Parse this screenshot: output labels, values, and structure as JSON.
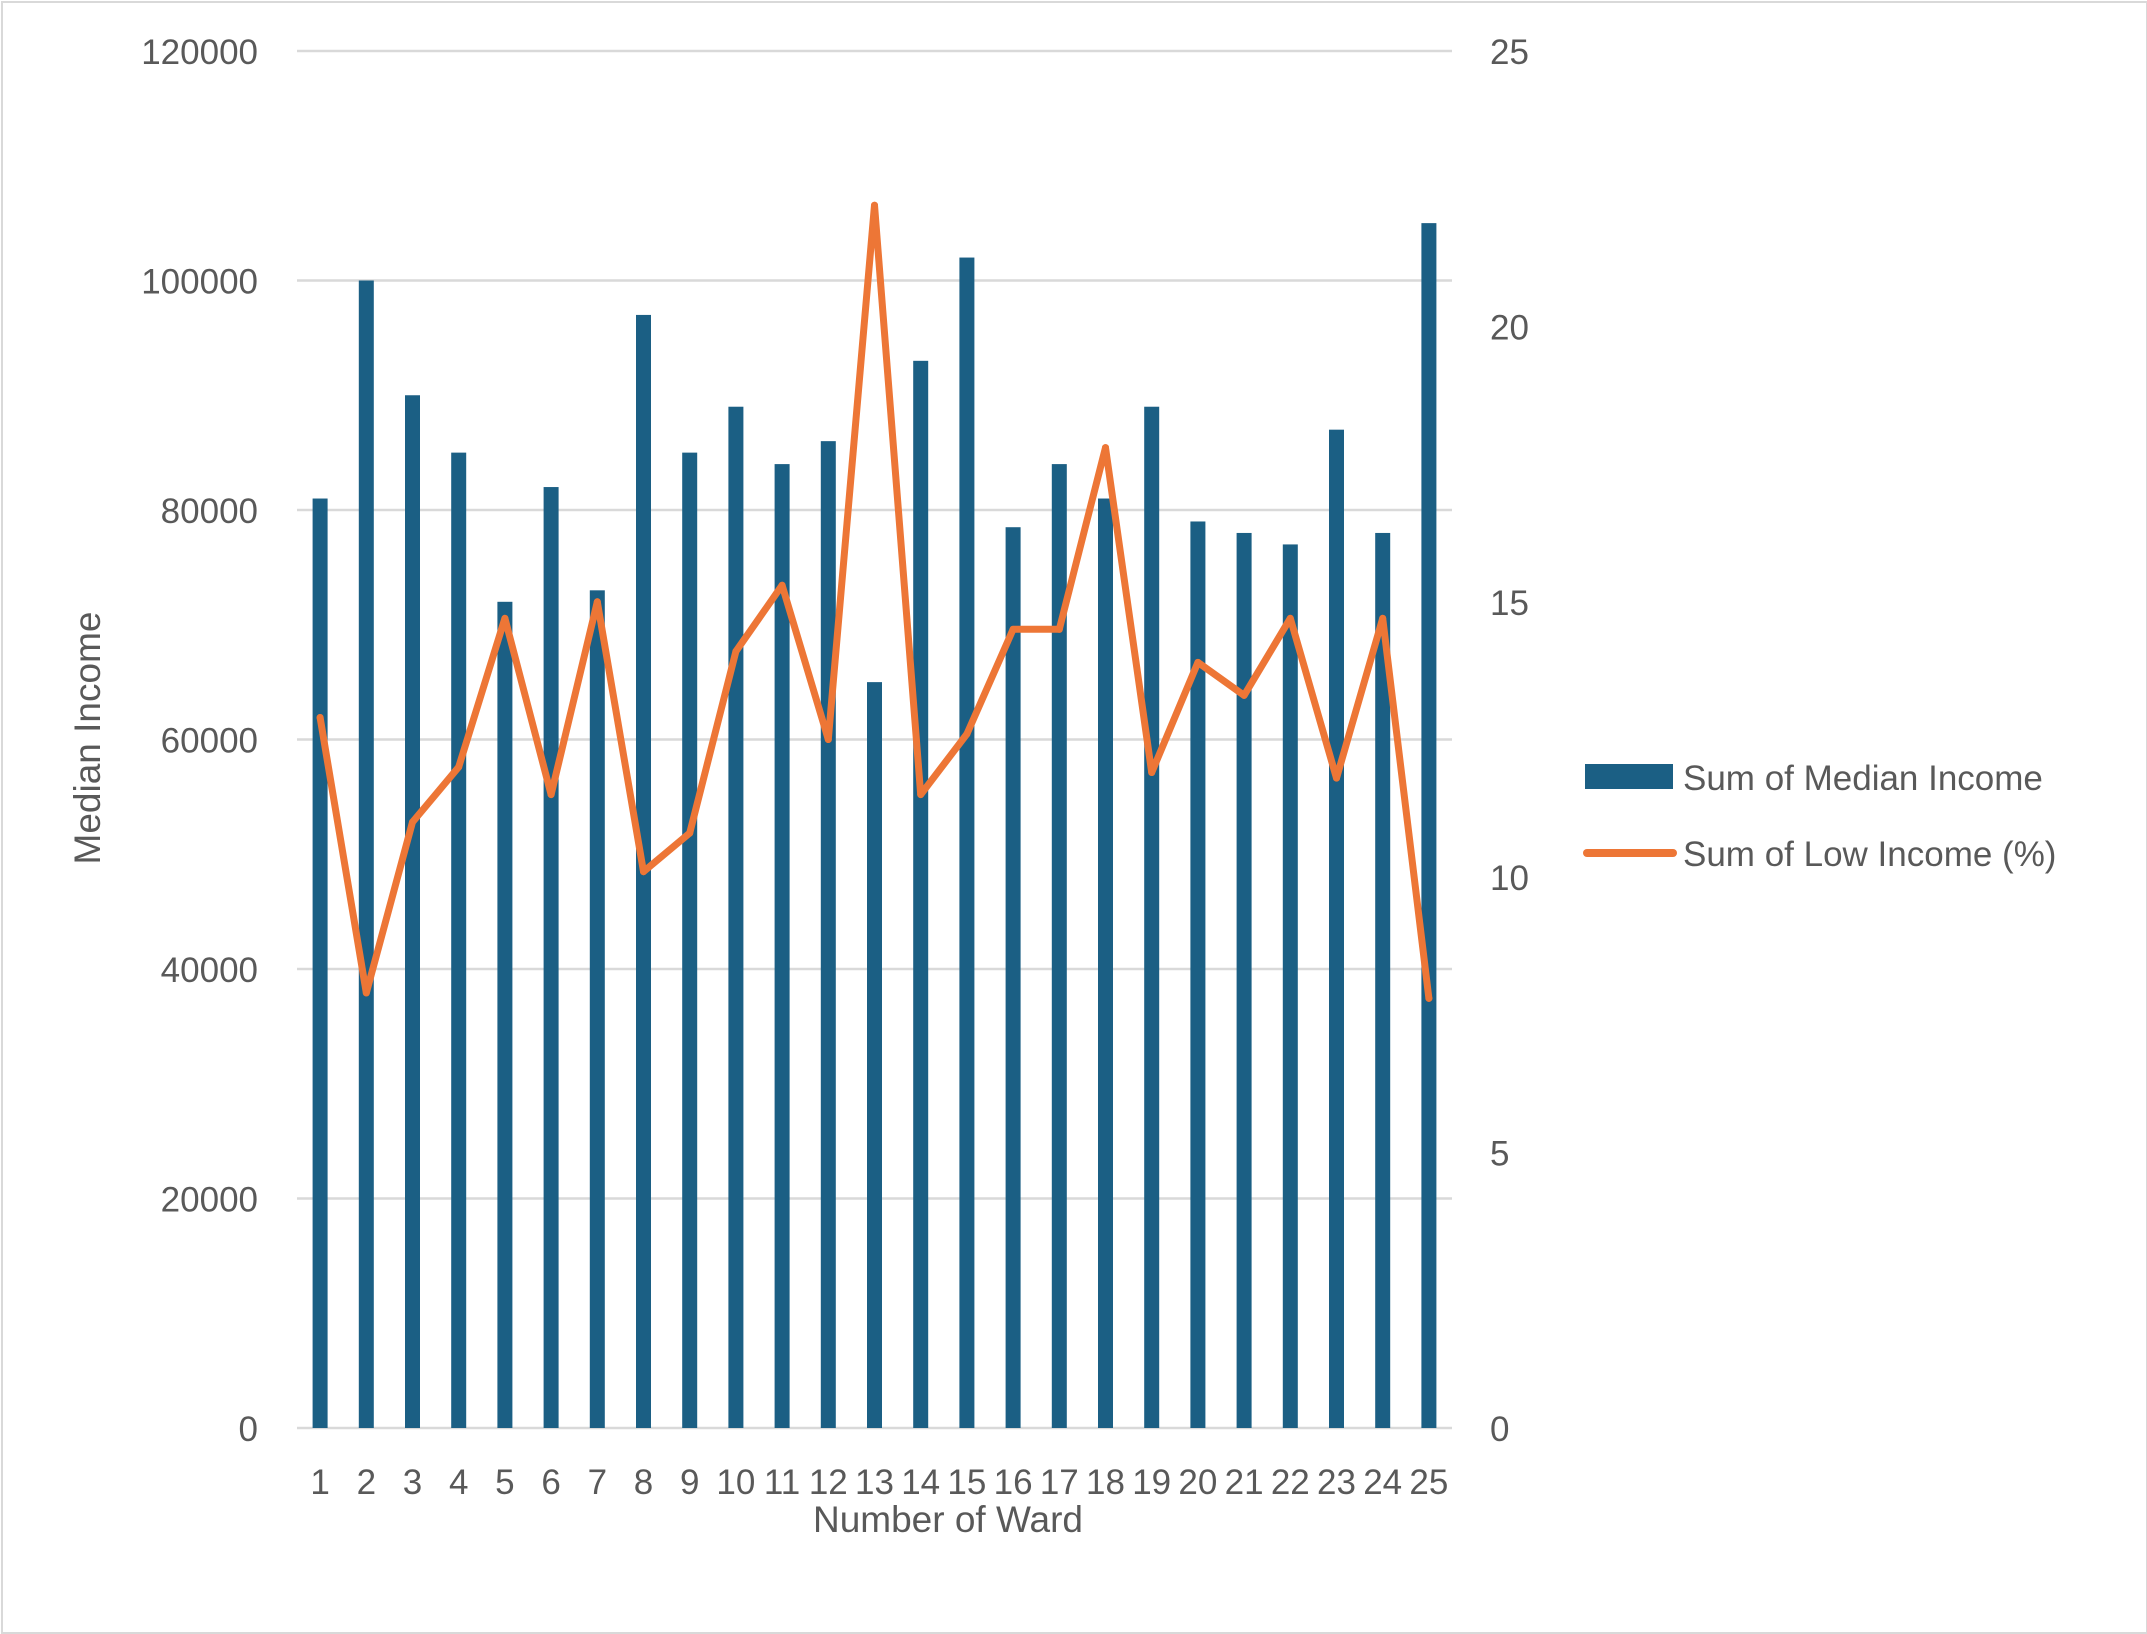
{
  "chart_data": {
    "type": "bar+line",
    "xlabel": "Number of Ward",
    "ylabel": "Median Income",
    "y2label": "",
    "categories": [
      "1",
      "2",
      "3",
      "4",
      "5",
      "6",
      "7",
      "8",
      "9",
      "10",
      "11",
      "12",
      "13",
      "14",
      "15",
      "16",
      "17",
      "18",
      "19",
      "20",
      "21",
      "22",
      "23",
      "24",
      "25"
    ],
    "ylim": [
      0,
      120000
    ],
    "yticks": [
      0,
      20000,
      40000,
      60000,
      80000,
      100000,
      120000
    ],
    "y2lim": [
      0,
      25
    ],
    "y2ticks": [
      0,
      5,
      10,
      15,
      20,
      25
    ],
    "grid": true,
    "legend_position": "right",
    "series": [
      {
        "name": "Sum of Median Income",
        "type": "bar",
        "axis": "left",
        "color": "#1b5f84",
        "values": [
          81000,
          100000,
          90000,
          85000,
          72000,
          82000,
          73000,
          97000,
          85000,
          89000,
          84000,
          86000,
          65000,
          93000,
          102000,
          78500,
          84000,
          81000,
          89000,
          79000,
          78000,
          77000,
          87000,
          78000,
          105000
        ]
      },
      {
        "name": "Sum of Low Income (%)",
        "type": "line",
        "axis": "right",
        "color": "#ed7636",
        "values": [
          12.9,
          7.9,
          11.0,
          12.0,
          14.7,
          11.5,
          15.0,
          10.1,
          10.8,
          14.1,
          15.3,
          12.5,
          22.2,
          11.5,
          12.6,
          14.5,
          14.5,
          17.8,
          11.9,
          13.9,
          13.3,
          14.7,
          11.8,
          14.7,
          7.8
        ]
      }
    ]
  },
  "style": {
    "axis_text_color": "#595959",
    "gridline_color": "#d9d9d9"
  }
}
